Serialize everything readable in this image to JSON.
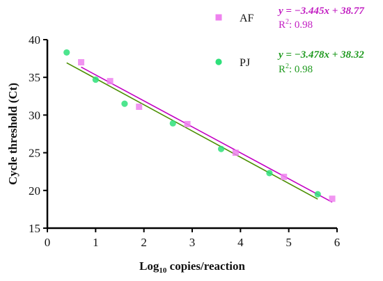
{
  "chart_data": {
    "type": "scatter",
    "xlabel_main": "Log",
    "xlabel_sub": "10",
    "xlabel_rest": " copies/reaction",
    "ylabel": "Cycle threshold (Ct)",
    "xlim": [
      0,
      6
    ],
    "ylim": [
      15,
      40
    ],
    "xticks": [
      0,
      1,
      2,
      3,
      4,
      5,
      6
    ],
    "yticks": [
      15,
      20,
      25,
      30,
      35,
      40
    ],
    "grid": false,
    "legend_position": "top-right",
    "series": [
      {
        "name": "AF",
        "marker": "square",
        "color": "#ee82ee",
        "line_color": "#c400c4",
        "x": [
          0.7,
          1.3,
          1.9,
          2.9,
          3.9,
          4.9,
          5.9
        ],
        "y": [
          37.0,
          34.5,
          31.1,
          28.8,
          25.0,
          21.8,
          18.9
        ],
        "fit": {
          "slope": -3.445,
          "intercept": 38.77,
          "x_range": [
            0.7,
            5.9
          ]
        },
        "equation": "y = −3.445x + 38.77",
        "r2_label": "R",
        "r2_value": ": 0.98",
        "text_color": "#c21ec2"
      },
      {
        "name": "PJ",
        "marker": "circle",
        "color": "#2ee07a",
        "line_color": "#4a8f00",
        "x": [
          0.4,
          1.0,
          1.6,
          2.6,
          3.6,
          4.6,
          5.6
        ],
        "y": [
          38.3,
          34.7,
          31.5,
          28.9,
          25.5,
          22.3,
          19.5
        ],
        "fit": {
          "slope": -3.478,
          "intercept": 38.32,
          "x_range": [
            0.4,
            5.6
          ]
        },
        "equation": "y = −3.478x + 38.32",
        "r2_label": "R",
        "r2_value": ": 0.98",
        "text_color": "#1f9a1f"
      }
    ]
  }
}
